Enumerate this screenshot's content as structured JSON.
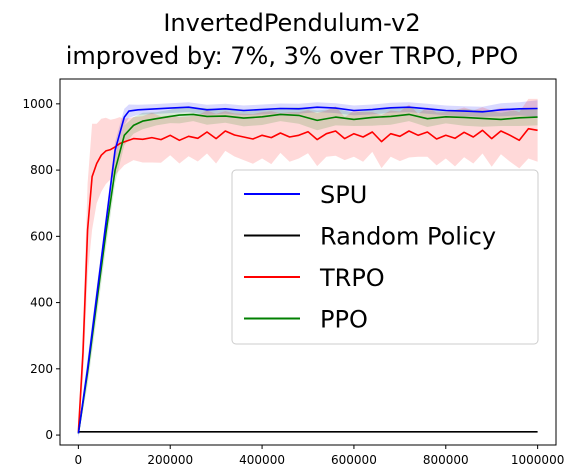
{
  "chart_data": {
    "type": "line",
    "title_lines": [
      "InvertedPendulum-v2",
      "improved by: 7%, 3% over TRPO, PPO"
    ],
    "xlabel": "",
    "ylabel": "",
    "xlim": [
      -40000,
      1040000
    ],
    "ylim": [
      -30,
      1075
    ],
    "x_ticks": [
      0,
      200000,
      400000,
      600000,
      800000,
      1000000
    ],
    "x_tick_labels": [
      "0",
      "200000",
      "400000",
      "600000",
      "800000",
      "1000000"
    ],
    "y_ticks": [
      0,
      200,
      400,
      600,
      800,
      1000
    ],
    "y_tick_labels": [
      "0",
      "200",
      "400",
      "600",
      "800",
      "1000"
    ],
    "grid": false,
    "legend_position": "center-right",
    "series": [
      {
        "name": "SPU",
        "color": "#0000ff",
        "band_color": "#0000ff",
        "x": [
          0,
          20000,
          40000,
          60000,
          80000,
          100000,
          110000,
          130000,
          160000,
          200000,
          240000,
          280000,
          320000,
          360000,
          400000,
          440000,
          480000,
          520000,
          560000,
          600000,
          640000,
          680000,
          720000,
          760000,
          800000,
          840000,
          880000,
          920000,
          960000,
          1000000
        ],
        "y": [
          5,
          200,
          420,
          640,
          860,
          960,
          978,
          982,
          984,
          987,
          990,
          982,
          985,
          980,
          983,
          986,
          985,
          990,
          987,
          980,
          983,
          988,
          990,
          985,
          980,
          978,
          976,
          982,
          985,
          986
        ],
        "band": [
          15,
          25,
          25,
          25,
          25,
          25,
          20,
          15,
          15,
          15,
          15,
          15,
          15,
          15,
          15,
          15,
          15,
          15,
          15,
          15,
          15,
          15,
          15,
          15,
          15,
          15,
          15,
          20,
          20,
          25
        ]
      },
      {
        "name": "Random Policy",
        "color": "#000000",
        "band_color": "#000000",
        "x": [
          0,
          100000,
          200000,
          300000,
          400000,
          500000,
          600000,
          700000,
          800000,
          900000,
          1000000
        ],
        "y": [
          10,
          10,
          10,
          10,
          10,
          10,
          10,
          10,
          10,
          10,
          10
        ],
        "band": [
          0,
          0,
          0,
          0,
          0,
          0,
          0,
          0,
          0,
          0,
          0
        ]
      },
      {
        "name": "TRPO",
        "color": "#ff0000",
        "band_color": "#ff0000",
        "x": [
          0,
          10000,
          20000,
          30000,
          40000,
          50000,
          60000,
          70000,
          80000,
          90000,
          100000,
          120000,
          140000,
          160000,
          180000,
          200000,
          220000,
          240000,
          260000,
          280000,
          300000,
          320000,
          340000,
          360000,
          380000,
          400000,
          420000,
          440000,
          460000,
          480000,
          500000,
          520000,
          540000,
          560000,
          580000,
          600000,
          620000,
          640000,
          660000,
          680000,
          700000,
          720000,
          740000,
          760000,
          780000,
          800000,
          820000,
          840000,
          860000,
          880000,
          900000,
          920000,
          940000,
          960000,
          980000,
          1000000
        ],
        "y": [
          10,
          250,
          620,
          780,
          820,
          845,
          858,
          862,
          870,
          880,
          885,
          895,
          893,
          898,
          892,
          905,
          890,
          902,
          896,
          915,
          895,
          918,
          906,
          900,
          894,
          905,
          898,
          912,
          900,
          905,
          916,
          892,
          910,
          918,
          895,
          910,
          900,
          915,
          886,
          910,
          902,
          918,
          905,
          915,
          894,
          905,
          896,
          914,
          900,
          920,
          895,
          918,
          905,
          890,
          925,
          920
        ],
        "band": [
          10,
          80,
          140,
          160,
          120,
          110,
          100,
          90,
          85,
          80,
          70,
          65,
          70,
          75,
          70,
          60,
          70,
          60,
          70,
          65,
          75,
          60,
          65,
          70,
          75,
          70,
          80,
          60,
          75,
          70,
          65,
          80,
          70,
          75,
          65,
          70,
          75,
          60,
          80,
          70,
          75,
          80,
          65,
          75,
          80,
          70,
          85,
          75,
          80,
          70,
          85,
          70,
          80,
          85,
          90,
          95
        ]
      },
      {
        "name": "PPO",
        "color": "#008000",
        "band_color": "#008000",
        "x": [
          0,
          20000,
          40000,
          60000,
          80000,
          100000,
          120000,
          140000,
          170000,
          200000,
          220000,
          250000,
          280000,
          320000,
          360000,
          400000,
          440000,
          480000,
          520000,
          560000,
          600000,
          640000,
          680000,
          720000,
          760000,
          800000,
          840000,
          880000,
          920000,
          960000,
          1000000
        ],
        "y": [
          5,
          190,
          400,
          610,
          800,
          905,
          935,
          948,
          955,
          962,
          966,
          968,
          962,
          963,
          957,
          961,
          968,
          965,
          950,
          960,
          953,
          959,
          962,
          968,
          955,
          961,
          959,
          956,
          953,
          958,
          960
        ],
        "band": [
          10,
          40,
          45,
          45,
          40,
          30,
          25,
          25,
          20,
          20,
          25,
          20,
          25,
          20,
          25,
          25,
          20,
          25,
          30,
          25,
          20,
          25,
          25,
          20,
          25,
          20,
          25,
          25,
          20,
          25,
          25
        ]
      }
    ]
  }
}
